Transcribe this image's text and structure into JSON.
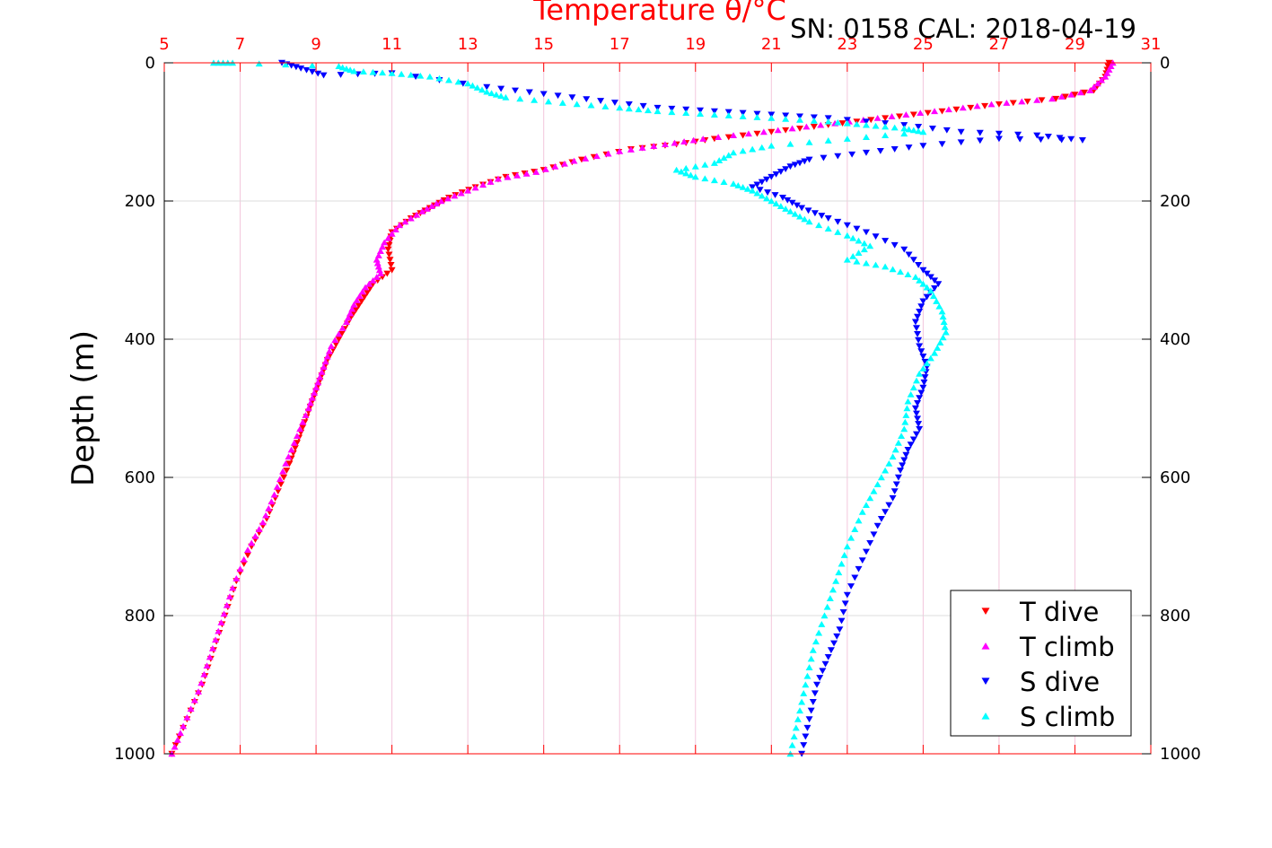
{
  "chart_data": {
    "type": "scatter",
    "title": "Temperature θ/°C",
    "annotation": "SN: 0158  CAL: 2018-04-19",
    "ylabel": "Depth (m)",
    "xlim": [
      5,
      31
    ],
    "ylim": [
      0,
      1000
    ],
    "y_reversed": true,
    "x_ticks": [
      "5",
      "7",
      "9",
      "11",
      "13",
      "15",
      "17",
      "19",
      "21",
      "23",
      "25",
      "27",
      "29",
      "31"
    ],
    "y_ticks": [
      "0",
      "200",
      "400",
      "600",
      "800",
      "1000"
    ],
    "grid": true,
    "legend_position": "bottom-right",
    "colors": {
      "x_axis": "#ff0000",
      "t_dive": "#ff0000",
      "t_climb": "#ff00ff",
      "s_dive": "#0000ff",
      "s_climb": "#00ffff"
    },
    "series": [
      {
        "name": "T dive",
        "marker": "triangle-down",
        "color": "#ff0000",
        "points": [
          [
            29.9,
            0
          ],
          [
            29.8,
            20
          ],
          [
            29.5,
            40
          ],
          [
            28.5,
            52
          ],
          [
            27.0,
            60
          ],
          [
            25.5,
            70
          ],
          [
            24.0,
            80
          ],
          [
            22.5,
            90
          ],
          [
            21.0,
            100
          ],
          [
            19.5,
            110
          ],
          [
            18.5,
            118
          ],
          [
            17.3,
            125
          ],
          [
            16.0,
            140
          ],
          [
            15.0,
            155
          ],
          [
            14.0,
            165
          ],
          [
            13.2,
            180
          ],
          [
            12.5,
            195
          ],
          [
            12.0,
            210
          ],
          [
            11.5,
            225
          ],
          [
            11.0,
            245
          ],
          [
            10.9,
            270
          ],
          [
            11.0,
            300
          ],
          [
            10.5,
            320
          ],
          [
            10.2,
            345
          ],
          [
            9.9,
            370
          ],
          [
            9.6,
            400
          ],
          [
            9.3,
            430
          ],
          [
            9.1,
            460
          ],
          [
            8.9,
            490
          ],
          [
            8.7,
            520
          ],
          [
            8.5,
            550
          ],
          [
            8.3,
            580
          ],
          [
            8.0,
            620
          ],
          [
            7.7,
            660
          ],
          [
            7.3,
            700
          ],
          [
            6.9,
            750
          ],
          [
            6.6,
            800
          ],
          [
            6.3,
            850
          ],
          [
            6.0,
            900
          ],
          [
            5.6,
            950
          ],
          [
            5.2,
            1000
          ]
        ]
      },
      {
        "name": "T climb",
        "marker": "triangle-up",
        "color": "#ff00ff",
        "points": [
          [
            30.0,
            0
          ],
          [
            29.8,
            20
          ],
          [
            29.4,
            40
          ],
          [
            28.4,
            52
          ],
          [
            26.8,
            60
          ],
          [
            25.3,
            70
          ],
          [
            23.8,
            80
          ],
          [
            22.3,
            90
          ],
          [
            20.8,
            100
          ],
          [
            19.2,
            110
          ],
          [
            18.2,
            118
          ],
          [
            17.0,
            128
          ],
          [
            15.8,
            142
          ],
          [
            14.8,
            158
          ],
          [
            13.8,
            168
          ],
          [
            13.0,
            185
          ],
          [
            12.3,
            200
          ],
          [
            11.8,
            215
          ],
          [
            11.2,
            235
          ],
          [
            10.8,
            260
          ],
          [
            10.6,
            285
          ],
          [
            10.7,
            305
          ],
          [
            10.3,
            325
          ],
          [
            10.0,
            350
          ],
          [
            9.8,
            375
          ],
          [
            9.4,
            410
          ],
          [
            9.2,
            440
          ],
          [
            9.0,
            470
          ],
          [
            8.8,
            500
          ],
          [
            8.5,
            540
          ],
          [
            8.2,
            580
          ],
          [
            7.9,
            625
          ],
          [
            7.6,
            665
          ],
          [
            7.2,
            705
          ],
          [
            6.8,
            760
          ],
          [
            6.5,
            810
          ],
          [
            6.2,
            860
          ],
          [
            5.9,
            910
          ],
          [
            5.5,
            960
          ],
          [
            5.2,
            1000
          ]
        ]
      },
      {
        "name": "S dive",
        "marker": "triangle-down",
        "color": "#0000ff",
        "points": [
          [
            8.1,
            0
          ],
          [
            8.6,
            8
          ],
          [
            9.2,
            18
          ],
          [
            11.0,
            15
          ],
          [
            13.5,
            35
          ],
          [
            15.0,
            45
          ],
          [
            16.5,
            55
          ],
          [
            18.0,
            65
          ],
          [
            19.5,
            70
          ],
          [
            21.0,
            75
          ],
          [
            22.5,
            80
          ],
          [
            24.5,
            90
          ],
          [
            26.0,
            100
          ],
          [
            28.0,
            105
          ],
          [
            29.2,
            112
          ],
          [
            27.0,
            110
          ],
          [
            25.0,
            120
          ],
          [
            23.5,
            130
          ],
          [
            22.0,
            140
          ],
          [
            21.5,
            150
          ],
          [
            21.0,
            165
          ],
          [
            20.5,
            180
          ],
          [
            21.3,
            195
          ],
          [
            21.8,
            210
          ],
          [
            22.5,
            225
          ],
          [
            23.5,
            245
          ],
          [
            24.5,
            270
          ],
          [
            25.0,
            300
          ],
          [
            25.4,
            320
          ],
          [
            25.0,
            345
          ],
          [
            24.8,
            375
          ],
          [
            24.9,
            410
          ],
          [
            25.1,
            440
          ],
          [
            25.0,
            470
          ],
          [
            24.8,
            500
          ],
          [
            24.9,
            530
          ],
          [
            24.6,
            560
          ],
          [
            24.4,
            590
          ],
          [
            24.2,
            630
          ],
          [
            23.8,
            670
          ],
          [
            23.4,
            720
          ],
          [
            23.0,
            770
          ],
          [
            22.8,
            820
          ],
          [
            22.5,
            860
          ],
          [
            22.2,
            900
          ],
          [
            22.0,
            950
          ],
          [
            21.8,
            1000
          ]
        ]
      },
      {
        "name": "S climb",
        "marker": "triangle-up",
        "color": "#00ffff",
        "points": [
          [
            6.3,
            0
          ],
          [
            6.8,
            0
          ],
          [
            9.6,
            5
          ],
          [
            10.0,
            12
          ],
          [
            11.0,
            15
          ],
          [
            12.0,
            20
          ],
          [
            13.0,
            30
          ],
          [
            13.5,
            42
          ],
          [
            14.0,
            50
          ],
          [
            15.5,
            58
          ],
          [
            17.0,
            65
          ],
          [
            18.0,
            70
          ],
          [
            19.5,
            75
          ],
          [
            21.0,
            80
          ],
          [
            22.5,
            85
          ],
          [
            23.5,
            90
          ],
          [
            24.5,
            95
          ],
          [
            25.0,
            100
          ],
          [
            23.0,
            110
          ],
          [
            21.0,
            120
          ],
          [
            20.0,
            130
          ],
          [
            19.5,
            145
          ],
          [
            18.5,
            155
          ],
          [
            19.0,
            165
          ],
          [
            20.0,
            175
          ],
          [
            20.5,
            185
          ],
          [
            21.0,
            200
          ],
          [
            21.5,
            215
          ],
          [
            22.0,
            230
          ],
          [
            23.0,
            250
          ],
          [
            23.6,
            265
          ],
          [
            23.0,
            285
          ],
          [
            24.0,
            295
          ],
          [
            24.8,
            310
          ],
          [
            25.2,
            330
          ],
          [
            25.5,
            360
          ],
          [
            25.6,
            390
          ],
          [
            25.3,
            420
          ],
          [
            24.9,
            450
          ],
          [
            24.6,
            490
          ],
          [
            24.5,
            530
          ],
          [
            24.2,
            570
          ],
          [
            23.8,
            610
          ],
          [
            23.4,
            650
          ],
          [
            23.0,
            700
          ],
          [
            22.7,
            750
          ],
          [
            22.4,
            800
          ],
          [
            22.1,
            850
          ],
          [
            21.9,
            900
          ],
          [
            21.7,
            950
          ],
          [
            21.5,
            1000
          ]
        ]
      }
    ]
  }
}
